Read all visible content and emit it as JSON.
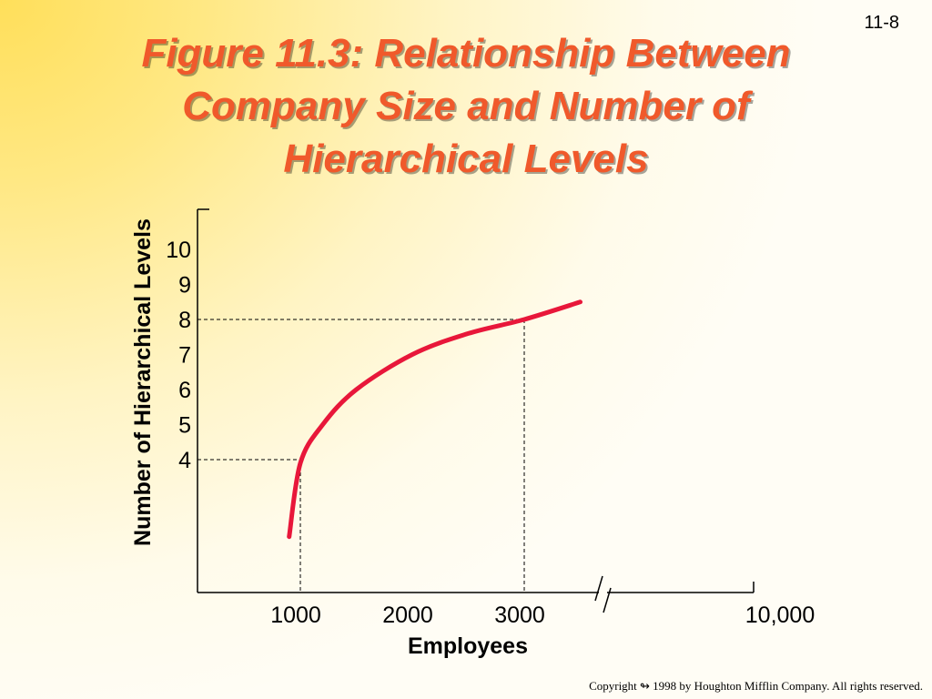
{
  "slide": {
    "number": "11-8",
    "title_lines": [
      "Figure 11.3:  Relationship Between",
      "Company Size and Number of",
      "Hierarchical Levels"
    ],
    "copyright": "Copyright  ↬ 1998 by Houghton Mifflin Company.  All rights reserved."
  },
  "colors": {
    "title": "#f0592b",
    "curve": "#e8173a",
    "axis": "#000000"
  },
  "chart_data": {
    "type": "line",
    "title": "Figure 11.3:  Relationship Between Company Size and Number of Hierarchical Levels",
    "xlabel": "Employees",
    "ylabel": "Number of Hierarchical Levels",
    "x_ticks": [
      "1000",
      "2000",
      "3000",
      "10,000"
    ],
    "y_ticks": [
      "10",
      "9",
      "8",
      "7",
      "6",
      "5",
      "4"
    ],
    "x_axis_break": "between 3000 and 10,000",
    "series": [
      {
        "x": [
          900,
          1000,
          1200,
          1500,
          2000,
          2500,
          3000,
          3500
        ],
        "y": [
          1.8,
          3.9,
          5.0,
          6.0,
          7.0,
          7.6,
          8.0,
          8.5
        ]
      }
    ],
    "reference_lines": [
      {
        "x": 1000,
        "y": 4
      },
      {
        "x": 3000,
        "y": 8
      }
    ],
    "grid": false,
    "legend": "none"
  }
}
